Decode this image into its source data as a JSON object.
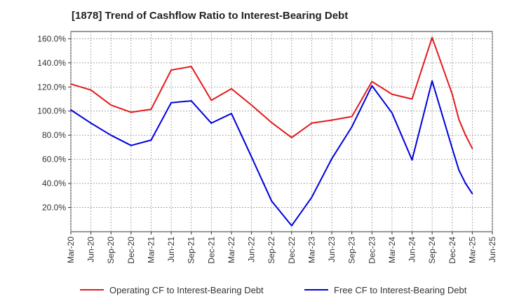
{
  "chart_data": {
    "type": "line",
    "title": "[1878]  Trend of Cashflow Ratio to Interest-Bearing Debt",
    "xlabel": "",
    "ylabel": "",
    "x_ticks": [
      "Mar-20",
      "Jun-20",
      "Sep-20",
      "Dec-20",
      "Mar-21",
      "Jun-21",
      "Sep-21",
      "Dec-21",
      "Mar-22",
      "Jun-22",
      "Sep-22",
      "Dec-22",
      "Mar-23",
      "Jun-23",
      "Sep-23",
      "Dec-23",
      "Mar-24",
      "Jun-24",
      "Sep-24",
      "Dec-24",
      "Mar-25",
      "Jun-25"
    ],
    "y_ticks": [
      "20.0%",
      "40.0%",
      "60.0%",
      "80.0%",
      "100.0%",
      "120.0%",
      "140.0%",
      "160.0%"
    ],
    "y_tick_values": [
      20,
      40,
      60,
      80,
      100,
      120,
      140,
      160
    ],
    "ylim": [
      0,
      166
    ],
    "grid": true,
    "legend_position": "bottom",
    "series": [
      {
        "name": "Operating CF to Interest-Bearing Debt",
        "color": "#e31a1c",
        "x": [
          "Mar-20",
          "Jun-20",
          "Sep-20",
          "Dec-20",
          "Mar-21",
          "Jun-21",
          "Sep-21",
          "Dec-21",
          "Mar-22",
          "Jun-22",
          "Sep-22",
          "Dec-22",
          "Mar-23",
          "Jun-23",
          "Sep-23",
          "Dec-23",
          "Mar-24",
          "Jun-24",
          "Sep-24",
          "Dec-24",
          "Jan-25",
          "Feb-25",
          "Mar-25"
        ],
        "values": [
          122.5,
          117.5,
          105.0,
          99.0,
          101.5,
          134.0,
          137.0,
          109.0,
          118.5,
          105.0,
          90.5,
          78.0,
          90.0,
          92.5,
          95.5,
          124.5,
          114.0,
          110.0,
          161.0,
          114.0,
          93.0,
          80.0,
          69.0
        ]
      },
      {
        "name": "Free CF to Interest-Bearing Debt",
        "color": "#0000dd",
        "x": [
          "Mar-20",
          "Jun-20",
          "Sep-20",
          "Dec-20",
          "Mar-21",
          "Jun-21",
          "Sep-21",
          "Dec-21",
          "Mar-22",
          "Jun-22",
          "Sep-22",
          "Dec-22",
          "Mar-23",
          "Jun-23",
          "Sep-23",
          "Dec-23",
          "Mar-24",
          "Jun-24",
          "Sep-24",
          "Dec-24",
          "Jan-25",
          "Feb-25",
          "Mar-25"
        ],
        "values": [
          101.0,
          90.0,
          80.0,
          71.5,
          76.0,
          107.0,
          108.5,
          90.0,
          98.0,
          62.0,
          25.5,
          5.0,
          28.5,
          60.5,
          87.0,
          121.0,
          98.5,
          59.5,
          125.0,
          69.0,
          51.0,
          40.0,
          31.5
        ]
      }
    ]
  }
}
